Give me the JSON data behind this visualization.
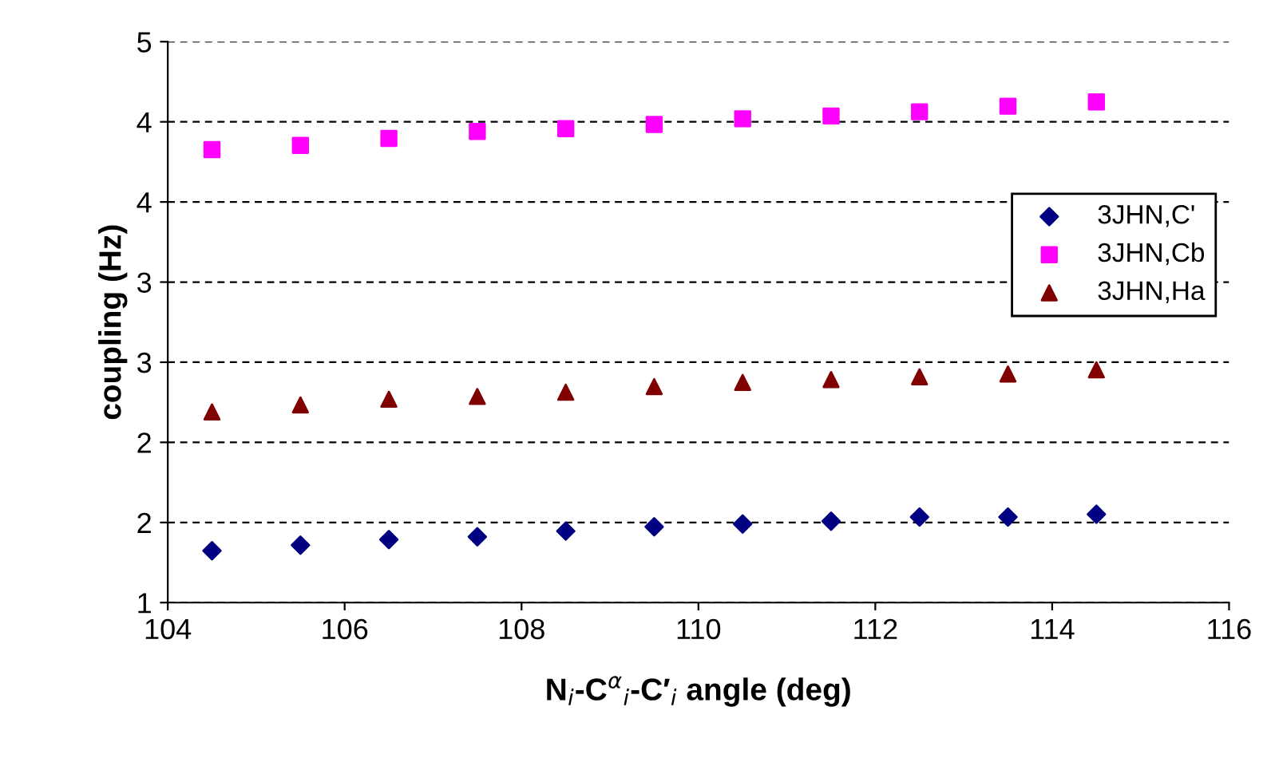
{
  "chart_data": {
    "type": "scatter",
    "xlabel": "N$_{i}$-C$^{α}$$_{i}$-C′$_{i}$ angle (deg)",
    "ylabel": "coupling (Hz)",
    "x": [
      104.5,
      105.5,
      106.5,
      107.5,
      108.5,
      109.5,
      110.5,
      111.5,
      112.5,
      113.5,
      114.5
    ],
    "series": [
      {
        "name": "3JHN,C'",
        "color": "#000080",
        "marker": "diamond",
        "values": [
          1.37,
          1.41,
          1.45,
          1.47,
          1.51,
          1.54,
          1.56,
          1.58,
          1.61,
          1.61,
          1.63
        ]
      },
      {
        "name": "3JHN,Cb",
        "color": "#ff00ff",
        "marker": "square",
        "values": [
          4.23,
          4.26,
          4.31,
          4.36,
          4.38,
          4.41,
          4.45,
          4.47,
          4.5,
          4.54,
          4.57
        ]
      },
      {
        "name": "3JHN,Ha",
        "color": "#800000",
        "marker": "triangle",
        "values": [
          2.36,
          2.41,
          2.45,
          2.47,
          2.5,
          2.54,
          2.57,
          2.59,
          2.61,
          2.63,
          2.66
        ]
      }
    ],
    "xlim": [
      104,
      116
    ],
    "xticks": [
      104,
      106,
      108,
      110,
      112,
      114,
      116
    ],
    "ylim": [
      1,
      5
    ],
    "yticks": [
      1,
      {
        "value": 1.5714,
        "label": "2"
      },
      {
        "value": 2.1429,
        "label": "2"
      },
      {
        "value": 2.7143,
        "label": "3"
      },
      {
        "value": 3.2857,
        "label": "3"
      },
      {
        "value": 3.8571,
        "label": "4"
      },
      {
        "value": 4.4286,
        "label": "4"
      },
      5
    ],
    "grid": "y",
    "legend": "center right"
  }
}
